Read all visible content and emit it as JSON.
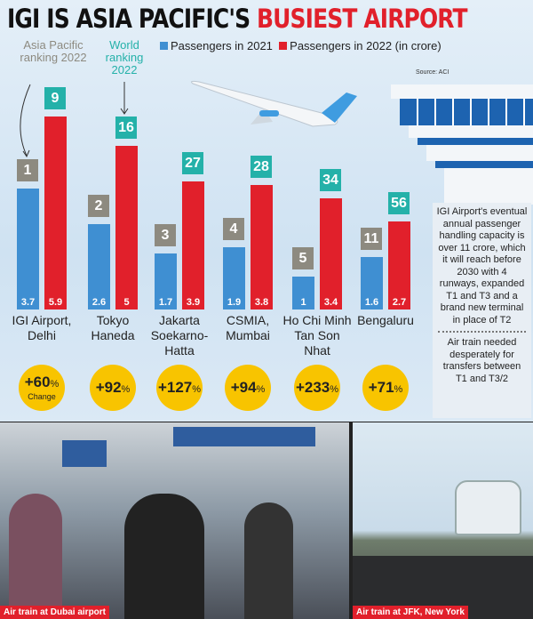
{
  "title": {
    "part1": "IGI IS ASIA PACIFIC'S ",
    "part2": "BUSIEST AIRPORT"
  },
  "legend": {
    "s2021": "Passengers in 2021",
    "s2022": "Passengers in 2022 (in crore)"
  },
  "rank_labels": {
    "asia": "Asia Pacific ranking 2022",
    "world": "World ranking 2022"
  },
  "source": "Source: ACI",
  "colors": {
    "blue": "#3f8fd2",
    "red": "#e1202b",
    "asia_rank": "#8d8a80",
    "world_rank": "#24b1a9",
    "change": "#f8c400"
  },
  "chart_data": {
    "type": "bar",
    "categories": [
      "IGI Airport, Delhi",
      "Tokyo Haneda",
      "Jakarta Soekarno-Hatta",
      "CSMIA, Mumbai",
      "Ho Chi Minh Tan Son Nhat",
      "Bengaluru"
    ],
    "series": [
      {
        "name": "Passengers in 2021",
        "values": [
          3.7,
          2.6,
          1.7,
          1.9,
          1,
          1.6
        ]
      },
      {
        "name": "Passengers in 2022 (in crore)",
        "values": [
          5.9,
          5,
          3.9,
          3.8,
          3.4,
          2.7
        ]
      }
    ],
    "value_labels": [
      [
        "3.7",
        "5.9"
      ],
      [
        "2.6",
        "5"
      ],
      [
        "1.7",
        "3.9"
      ],
      [
        "1.9",
        "3.8"
      ],
      [
        "1",
        "3.4"
      ],
      [
        "1.6",
        "2.7"
      ]
    ],
    "asia_ranking": [
      "1",
      "2",
      "3",
      "4",
      "5",
      "11"
    ],
    "world_ranking": [
      "9",
      "16",
      "27",
      "28",
      "34",
      "56"
    ],
    "change": [
      "+60",
      "+92",
      "+127",
      "+94",
      "+233",
      "+71"
    ],
    "change_unit": "%",
    "change_caption": "Change"
  },
  "side": {
    "note1": "IGI Airport's eventual annual passenger handling capacity is over 11 crore, which it will reach before 2030 with 4 runways, expanded T1 and T3 and a brand new terminal in place of T2",
    "note2": "Air train needed desperately for transfers between T1 and T3/2"
  },
  "photos": [
    {
      "caption": "Air train at Dubai airport"
    },
    {
      "caption": "Air train at JFK, New York"
    }
  ]
}
